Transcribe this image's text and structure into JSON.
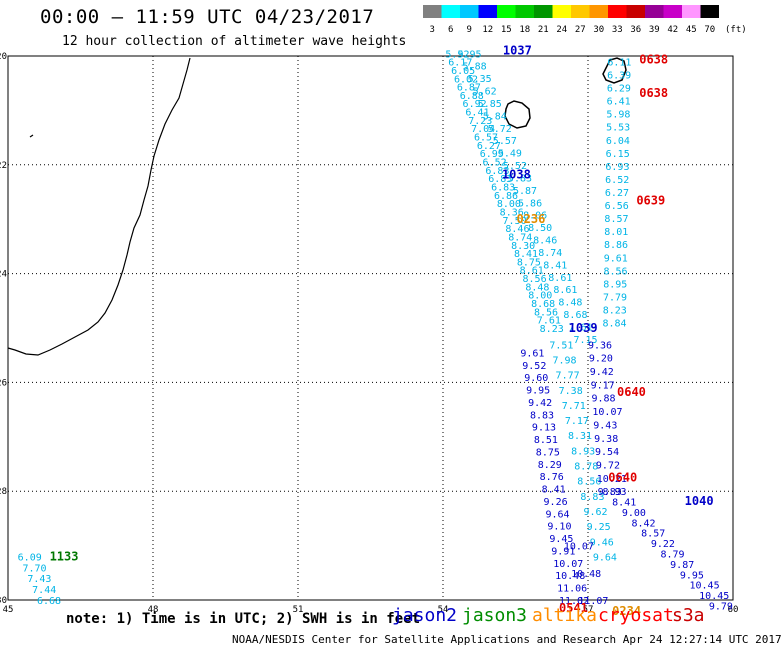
{
  "title": "00:00 – 11:59 UTC 04/23/2017",
  "subtitle": "12 hour collection of altimeter wave heights",
  "note": "note: 1) Time is in UTC; 2) SWH is in feet",
  "credit": "NOAA/NESDIS Center for Satellite Applications and Research    Apr 24 12:27:14 UTC 2017",
  "colorbar": {
    "unit": "(ft)",
    "ticks": [
      "3",
      "6",
      "9",
      "12",
      "15",
      "18",
      "21",
      "24",
      "27",
      "30",
      "33",
      "36",
      "39",
      "42",
      "45",
      "70"
    ],
    "colors": [
      "#808080",
      "#00ffff",
      "#00c8ff",
      "#0000ff",
      "#00ff00",
      "#00c800",
      "#009600",
      "#ffff00",
      "#ffc800",
      "#ff9600",
      "#ff0000",
      "#c80000",
      "#960096",
      "#c800c8",
      "#ff96ff",
      "#000000"
    ]
  },
  "axes": {
    "lon_ticks": [
      "45",
      "48",
      "51",
      "54",
      "57",
      "60"
    ],
    "lat_ticks": [
      "-20",
      "-22",
      "-24",
      "-26",
      "-28",
      "-30"
    ]
  },
  "satellites": [
    {
      "name": "jason2",
      "color": "#0000c8"
    },
    {
      "name": "jason3",
      "color": "#008c00"
    },
    {
      "name": "altika",
      "color": "#ff8c00"
    },
    {
      "name": "cryosat",
      "color": "#ff0000"
    },
    {
      "name": "s3a",
      "color": "#c80000"
    }
  ],
  "pass_labels": [
    {
      "text": "1037",
      "color": "#0000c8",
      "lon": 55.24,
      "lat": -19.9
    },
    {
      "text": "0638",
      "color": "#e00000",
      "lon": 58.06,
      "lat": -20.06
    },
    {
      "text": "0638",
      "color": "#e00000",
      "lon": 58.06,
      "lat": -20.68
    },
    {
      "text": "1038",
      "color": "#0000c8",
      "lon": 55.22,
      "lat": -22.18
    },
    {
      "text": "0639",
      "color": "#e00000",
      "lon": 58.0,
      "lat": -22.66
    },
    {
      "text": "0236",
      "color": "#e08c00",
      "lon": 55.52,
      "lat": -23.0
    },
    {
      "text": "1039",
      "color": "#0000c8",
      "lon": 56.6,
      "lat": -25.0
    },
    {
      "text": "0640",
      "color": "#e00000",
      "lon": 57.6,
      "lat": -26.18
    },
    {
      "text": "0640",
      "color": "#e00000",
      "lon": 57.42,
      "lat": -27.75
    },
    {
      "text": "1040",
      "color": "#0000c8",
      "lon": 59.0,
      "lat": -28.18
    },
    {
      "text": "1133",
      "color": "#007800",
      "lon": 45.86,
      "lat": -29.2
    },
    {
      "text": "0541",
      "color": "#e00000",
      "lon": 56.4,
      "lat": -30.15
    },
    {
      "text": "0234",
      "color": "#e08c00",
      "lon": 57.5,
      "lat": -30.2
    }
  ],
  "tracks": [
    {
      "name": "jason2-1037",
      "color": "#00b4e6",
      "start": [
        54.05,
        -19.95
      ],
      "end": [
        56.0,
        -25.0
      ],
      "values": [
        "5.92",
        "6.17",
        "6.05",
        "6.02",
        "6.87",
        "6.88",
        "6.92",
        "6.41",
        "7.23",
        "7.04",
        "6.57",
        "6.27",
        "6.99",
        "6.52",
        "6.83",
        "6.83",
        "6.83",
        "6.86",
        "8.00",
        "8.36",
        "7.50",
        "8.46",
        "8.74",
        "8.30",
        "8.41",
        "8.75",
        "8.61",
        "8.56",
        "8.48",
        "8.00",
        "8.68",
        "8.56",
        "7.61",
        "8.23"
      ]
    },
    {
      "name": "jason2-1037b",
      "color": "#00b4e6",
      "start": [
        54.3,
        -19.95
      ],
      "end": [
        56.7,
        -25.2
      ],
      "values": [
        "5.95",
        "5.88",
        "5.35",
        "5.62",
        "5.85",
        "5.84",
        "5.72",
        "5.57",
        "5.49",
        "5.52",
        "5.83",
        "5.87",
        "5.86",
        "8.06",
        "8.50",
        "8.46",
        "8.74",
        "8.41",
        "8.61",
        "8.61",
        "8.48",
        "8.68",
        "7.61",
        "7.15"
      ]
    },
    {
      "name": "jason2-1039",
      "color": "#0000c8",
      "start": [
        55.6,
        -25.45
      ],
      "end": [
        56.4,
        -30.0
      ],
      "values": [
        "9.61",
        "9.52",
        "9.60",
        "9.95",
        "9.42",
        "8.83",
        "9.13",
        "8.51",
        "8.75",
        "8.29",
        "8.76",
        "8.41",
        "9.26",
        "9.64",
        "9.10",
        "9.45",
        "9.91",
        "10.07",
        "10.48",
        "11.06",
        "11.02"
      ]
    },
    {
      "name": "jason2-1039b",
      "color": "#00b4e6",
      "start": [
        56.2,
        -25.3
      ],
      "end": [
        57.1,
        -29.2
      ],
      "values": [
        "7.51",
        "7.98",
        "7.77",
        "7.38",
        "7.71",
        "7.17",
        "8.31",
        "8.93",
        "8.78",
        "8.56",
        "8.83",
        "9.62",
        "9.25",
        "9.46",
        "9.64"
      ]
    },
    {
      "name": "cryosat-0638",
      "color": "#00b4e6",
      "start": [
        57.4,
        -20.1
      ],
      "end": [
        57.3,
        -24.9
      ],
      "values": [
        "6.11",
        "6.39",
        "6.29",
        "6.41",
        "5.98",
        "5.53",
        "6.04",
        "6.15",
        "6.93",
        "6.52",
        "6.27",
        "6.56",
        "8.57",
        "8.01",
        "8.86",
        "9.61",
        "8.56",
        "8.95",
        "7.79",
        "8.23",
        "8.84"
      ]
    },
    {
      "name": "cryosat-0640",
      "color": "#0000c8",
      "start": [
        57.0,
        -25.3
      ],
      "end": [
        57.2,
        -28.0
      ],
      "values": [
        "9.36",
        "9.20",
        "9.42",
        "9.17",
        "9.88",
        "10.07",
        "9.43",
        "9.38",
        "9.54",
        "9.72",
        "10.21",
        "9.83"
      ]
    },
    {
      "name": "jason2-1040",
      "color": "#0000c8",
      "start": [
        57.3,
        -28.0
      ],
      "end": [
        59.5,
        -30.1
      ],
      "values": [
        "8.93",
        "8.41",
        "9.00",
        "8.42",
        "8.57",
        "9.22",
        "8.79",
        "9.87",
        "9.95",
        "10.45",
        "10.45",
        "9.79"
      ]
    },
    {
      "name": "jason3-1133",
      "color": "#00b4e6",
      "start": [
        45.2,
        -29.2
      ],
      "end": [
        45.6,
        -30.0
      ],
      "values": [
        "6.09",
        "7.70",
        "7.43",
        "7.44",
        "6.68"
      ]
    },
    {
      "name": "jason2-1039c",
      "color": "#0000c8",
      "start": [
        56.5,
        -29.0
      ],
      "end": [
        56.8,
        -30.0
      ],
      "values": [
        "10.07",
        "10.48",
        "11.07"
      ]
    }
  ],
  "islands": [
    {
      "name": "reunion",
      "color": "#000000"
    },
    {
      "name": "mauritius",
      "color": "#000000"
    }
  ]
}
